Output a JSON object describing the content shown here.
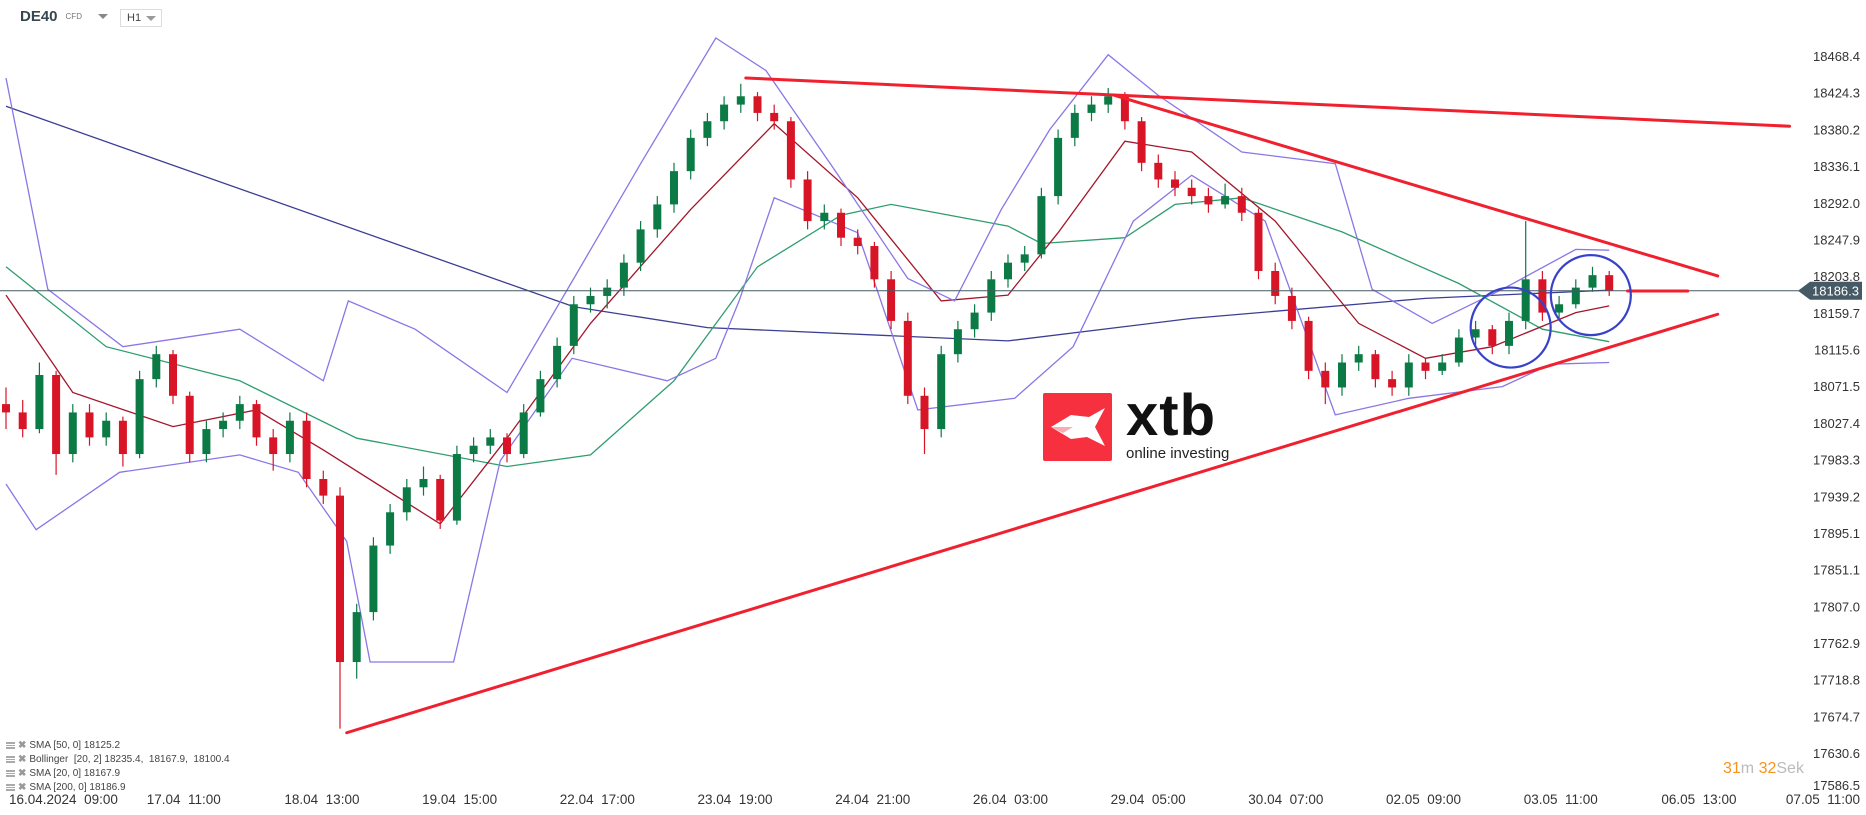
{
  "header": {
    "symbol": "DE40",
    "instrument_type": "CFD",
    "timeframe": "H1"
  },
  "legend": [
    {
      "label": "SMA [50, 0] 18125.2"
    },
    {
      "label": "Bollinger  [20, 2] 18235.4,  18167.9,  18100.4"
    },
    {
      "label": "SMA [20, 0] 18167.9"
    },
    {
      "label": "SMA [200, 0] 18186.9"
    }
  ],
  "countdown": {
    "minutes": "31",
    "minutes_unit": "m",
    "seconds": "32",
    "seconds_unit": "Sek"
  },
  "logo": {
    "brand": "xtb",
    "tagline": "online investing"
  },
  "chart_data": {
    "type": "candlestick",
    "title": "",
    "ylim": [
      17586.5,
      18468.4
    ],
    "grid": false,
    "y_ticks": [
      "18468.4",
      "18424.3",
      "18380.2",
      "18336.1",
      "18292.0",
      "18247.9",
      "18203.8",
      "18159.7",
      "18115.6",
      "18071.5",
      "18027.4",
      "17983.3",
      "17939.2",
      "17895.1",
      "17851.1",
      "17807.0",
      "17762.9",
      "17718.8",
      "17674.7",
      "17630.6",
      "17586.5"
    ],
    "x_ticks": [
      "16.04.2024  09:00",
      "17.04  11:00",
      "18.04  13:00",
      "19.04  15:00",
      "22.04  17:00",
      "23.04  19:00",
      "24.04  21:00",
      "26.04  03:00",
      "29.04  05:00",
      "30.04  07:00",
      "02.05  09:00",
      "03.05  11:00",
      "06.05  13:00",
      "07.05  11:00"
    ],
    "current_price": "18186.3",
    "colors": {
      "up": "#0b7a45",
      "down": "#d81427",
      "sma20": "#a3162b",
      "sma50": "#2f9d6e",
      "sma200": "#3b3f93",
      "bollinger": "#8b76e6",
      "trendline": "#f0202e",
      "annotation_circle": "#3742c9",
      "price_line": "#455a64"
    },
    "candles_ohlc": [
      [
        18050,
        18070,
        18020,
        18040
      ],
      [
        18040,
        18055,
        18010,
        18020
      ],
      [
        18020,
        18100,
        18015,
        18085
      ],
      [
        18085,
        18090,
        17965,
        17990
      ],
      [
        17990,
        18050,
        17980,
        18040
      ],
      [
        18040,
        18050,
        18000,
        18010
      ],
      [
        18010,
        18040,
        18000,
        18030
      ],
      [
        18030,
        18035,
        17975,
        17990
      ],
      [
        17990,
        18090,
        17985,
        18080
      ],
      [
        18080,
        18120,
        18070,
        18110
      ],
      [
        18110,
        18115,
        18050,
        18060
      ],
      [
        18060,
        18065,
        17980,
        17990
      ],
      [
        17990,
        18030,
        17980,
        18020
      ],
      [
        18020,
        18040,
        18010,
        18030
      ],
      [
        18030,
        18060,
        18020,
        18050
      ],
      [
        18050,
        18055,
        18000,
        18010
      ],
      [
        18010,
        18020,
        17970,
        17990
      ],
      [
        17990,
        18040,
        17980,
        18030
      ],
      [
        18030,
        18040,
        17950,
        17960
      ],
      [
        17960,
        17970,
        17930,
        17940
      ],
      [
        17940,
        17950,
        17660,
        17740
      ],
      [
        17740,
        17810,
        17720,
        17800
      ],
      [
        17800,
        17890,
        17790,
        17880
      ],
      [
        17880,
        17930,
        17870,
        17920
      ],
      [
        17920,
        17960,
        17910,
        17950
      ],
      [
        17950,
        17975,
        17940,
        17960
      ],
      [
        17960,
        17965,
        17900,
        17910
      ],
      [
        17910,
        18000,
        17905,
        17990
      ],
      [
        17990,
        18010,
        17980,
        18000
      ],
      [
        18000,
        18020,
        17990,
        18010
      ],
      [
        18010,
        18015,
        17980,
        17990
      ],
      [
        17990,
        18050,
        17985,
        18040
      ],
      [
        18040,
        18090,
        18035,
        18080
      ],
      [
        18080,
        18130,
        18070,
        18120
      ],
      [
        18120,
        18180,
        18110,
        18170
      ],
      [
        18170,
        18190,
        18160,
        18180
      ],
      [
        18180,
        18200,
        18165,
        18190
      ],
      [
        18190,
        18230,
        18180,
        18220
      ],
      [
        18220,
        18270,
        18210,
        18260
      ],
      [
        18260,
        18300,
        18250,
        18290
      ],
      [
        18290,
        18340,
        18280,
        18330
      ],
      [
        18330,
        18380,
        18320,
        18370
      ],
      [
        18370,
        18400,
        18360,
        18390
      ],
      [
        18390,
        18420,
        18380,
        18410
      ],
      [
        18410,
        18435,
        18400,
        18420
      ],
      [
        18420,
        18425,
        18390,
        18400
      ],
      [
        18400,
        18410,
        18380,
        18390
      ],
      [
        18390,
        18395,
        18310,
        18320
      ],
      [
        18320,
        18330,
        18260,
        18270
      ],
      [
        18270,
        18290,
        18260,
        18280
      ],
      [
        18280,
        18285,
        18240,
        18250
      ],
      [
        18250,
        18260,
        18230,
        18240
      ],
      [
        18240,
        18245,
        18190,
        18200
      ],
      [
        18200,
        18210,
        18140,
        18150
      ],
      [
        18150,
        18160,
        18050,
        18060
      ],
      [
        18060,
        18070,
        17990,
        18020
      ],
      [
        18020,
        18120,
        18010,
        18110
      ],
      [
        18110,
        18150,
        18100,
        18140
      ],
      [
        18140,
        18170,
        18130,
        18160
      ],
      [
        18160,
        18210,
        18150,
        18200
      ],
      [
        18200,
        18230,
        18190,
        18220
      ],
      [
        18220,
        18240,
        18210,
        18230
      ],
      [
        18230,
        18310,
        18225,
        18300
      ],
      [
        18300,
        18380,
        18290,
        18370
      ],
      [
        18370,
        18410,
        18360,
        18400
      ],
      [
        18400,
        18420,
        18390,
        18410
      ],
      [
        18410,
        18430,
        18400,
        18420
      ],
      [
        18420,
        18425,
        18380,
        18390
      ],
      [
        18390,
        18395,
        18330,
        18340
      ],
      [
        18340,
        18350,
        18310,
        18320
      ],
      [
        18320,
        18330,
        18300,
        18310
      ],
      [
        18310,
        18320,
        18290,
        18300
      ],
      [
        18300,
        18310,
        18280,
        18290
      ],
      [
        18290,
        18315,
        18285,
        18300
      ],
      [
        18300,
        18310,
        18270,
        18280
      ],
      [
        18280,
        18285,
        18200,
        18210
      ],
      [
        18210,
        18220,
        18170,
        18180
      ],
      [
        18180,
        18190,
        18140,
        18150
      ],
      [
        18150,
        18155,
        18080,
        18090
      ],
      [
        18090,
        18100,
        18050,
        18070
      ],
      [
        18070,
        18110,
        18060,
        18100
      ],
      [
        18100,
        18120,
        18090,
        18110
      ],
      [
        18110,
        18115,
        18070,
        18080
      ],
      [
        18080,
        18090,
        18060,
        18070
      ],
      [
        18070,
        18110,
        18060,
        18100
      ],
      [
        18100,
        18105,
        18080,
        18090
      ],
      [
        18090,
        18110,
        18085,
        18100
      ],
      [
        18100,
        18140,
        18095,
        18130
      ],
      [
        18130,
        18150,
        18120,
        18140
      ],
      [
        18140,
        18145,
        18110,
        18120
      ],
      [
        18120,
        18160,
        18110,
        18150
      ],
      [
        18150,
        18270,
        18140,
        18200
      ],
      [
        18200,
        18210,
        18150,
        18160
      ],
      [
        18160,
        18180,
        18150,
        18170
      ],
      [
        18170,
        18200,
        18165,
        18190
      ],
      [
        18190,
        18215,
        18185,
        18205
      ],
      [
        18205,
        18210,
        18180,
        18186.3
      ]
    ],
    "indicators": [
      {
        "name": "SMA [200, 0]",
        "color_key": "sma200",
        "points_bar_price": [
          [
            0,
            18408
          ],
          [
            34,
            18167
          ],
          [
            42,
            18142
          ],
          [
            60,
            18126
          ],
          [
            71,
            18153
          ],
          [
            85,
            18177
          ],
          [
            96,
            18187
          ]
        ]
      },
      {
        "name": "SMA [50, 0]",
        "color_key": "sma50",
        "points_bar_price": [
          [
            0,
            18215
          ],
          [
            6,
            18119
          ],
          [
            14,
            18078
          ],
          [
            21,
            18009
          ],
          [
            30,
            17975
          ],
          [
            35,
            17989
          ],
          [
            40,
            18078
          ],
          [
            45,
            18215
          ],
          [
            50,
            18277
          ],
          [
            53,
            18290
          ],
          [
            60,
            18264
          ],
          [
            62,
            18243
          ],
          [
            67,
            18250
          ],
          [
            70,
            18290
          ],
          [
            74,
            18298
          ],
          [
            80,
            18257
          ],
          [
            87,
            18195
          ],
          [
            92,
            18140
          ],
          [
            96,
            18125
          ]
        ]
      },
      {
        "name": "SMA [20, 0]",
        "color_key": "sma20",
        "points_bar_price": [
          [
            0,
            18181
          ],
          [
            4,
            18064
          ],
          [
            10,
            18023
          ],
          [
            15,
            18043
          ],
          [
            19,
            17995
          ],
          [
            26,
            17906
          ],
          [
            30,
            18009
          ],
          [
            35,
            18147
          ],
          [
            41,
            18284
          ],
          [
            46,
            18387
          ],
          [
            51,
            18298
          ],
          [
            56,
            18174
          ],
          [
            60,
            18181
          ],
          [
            63,
            18256
          ],
          [
            67,
            18366
          ],
          [
            71,
            18353
          ],
          [
            76,
            18270
          ],
          [
            81,
            18147
          ],
          [
            85,
            18105
          ],
          [
            89,
            18119
          ],
          [
            94,
            18160
          ],
          [
            96,
            18168
          ]
        ]
      },
      {
        "name": "Bollinger upper",
        "color_key": "bollinger",
        "points_bar_price": [
          [
            0,
            18442
          ],
          [
            2.5,
            18188
          ],
          [
            7,
            18119
          ],
          [
            14,
            18140
          ],
          [
            19,
            18078
          ],
          [
            20.5,
            18174
          ],
          [
            24.5,
            18140
          ],
          [
            30,
            18064
          ],
          [
            34,
            18201
          ],
          [
            38,
            18339
          ],
          [
            42.5,
            18490
          ],
          [
            45.5,
            18451
          ],
          [
            49.6,
            18332
          ],
          [
            54,
            18201
          ],
          [
            56.8,
            18174
          ],
          [
            59.6,
            18284
          ],
          [
            62.5,
            18380
          ],
          [
            66,
            18470
          ],
          [
            69,
            18421
          ],
          [
            74,
            18353
          ],
          [
            79.6,
            18339
          ],
          [
            81.8,
            18188
          ],
          [
            85.4,
            18147
          ],
          [
            89.6,
            18188
          ],
          [
            94,
            18236
          ],
          [
            96,
            18235
          ]
        ]
      },
      {
        "name": "Bollinger lower",
        "color_key": "bollinger",
        "points_bar_price": [
          [
            0,
            17954
          ],
          [
            1.8,
            17899
          ],
          [
            6.8,
            17968
          ],
          [
            14,
            17989
          ],
          [
            17.5,
            17968
          ],
          [
            20.4,
            17885
          ],
          [
            21.8,
            17740
          ],
          [
            26.8,
            17740
          ],
          [
            29.6,
            17982
          ],
          [
            33.9,
            18105
          ],
          [
            39.6,
            18078
          ],
          [
            42.5,
            18105
          ],
          [
            43.9,
            18174
          ],
          [
            46,
            18298
          ],
          [
            51,
            18256
          ],
          [
            54.6,
            18043
          ],
          [
            60.4,
            18057
          ],
          [
            63.9,
            18119
          ],
          [
            67.5,
            18270
          ],
          [
            71,
            18325
          ],
          [
            75.4,
            18270
          ],
          [
            79.6,
            18037
          ],
          [
            84,
            18057
          ],
          [
            89.6,
            18071
          ],
          [
            92.5,
            18098
          ],
          [
            96,
            18100
          ]
        ]
      }
    ],
    "trendlines": [
      {
        "from": [
          44.3,
          18442
        ],
        "to": [
          106.8,
          18384
        ]
      },
      {
        "from": [
          66.4,
          18421
        ],
        "to": [
          102.5,
          18204
        ]
      },
      {
        "from": [
          20.4,
          17655
        ],
        "to": [
          102.5,
          18158
        ]
      },
      {
        "from": [
          97.1,
          18186
        ],
        "to": [
          100.7,
          18186
        ]
      }
    ],
    "annotation_circles": [
      {
        "center": [
          90.1,
          18142
        ]
      },
      {
        "center": [
          94.9,
          18181
        ]
      }
    ]
  }
}
